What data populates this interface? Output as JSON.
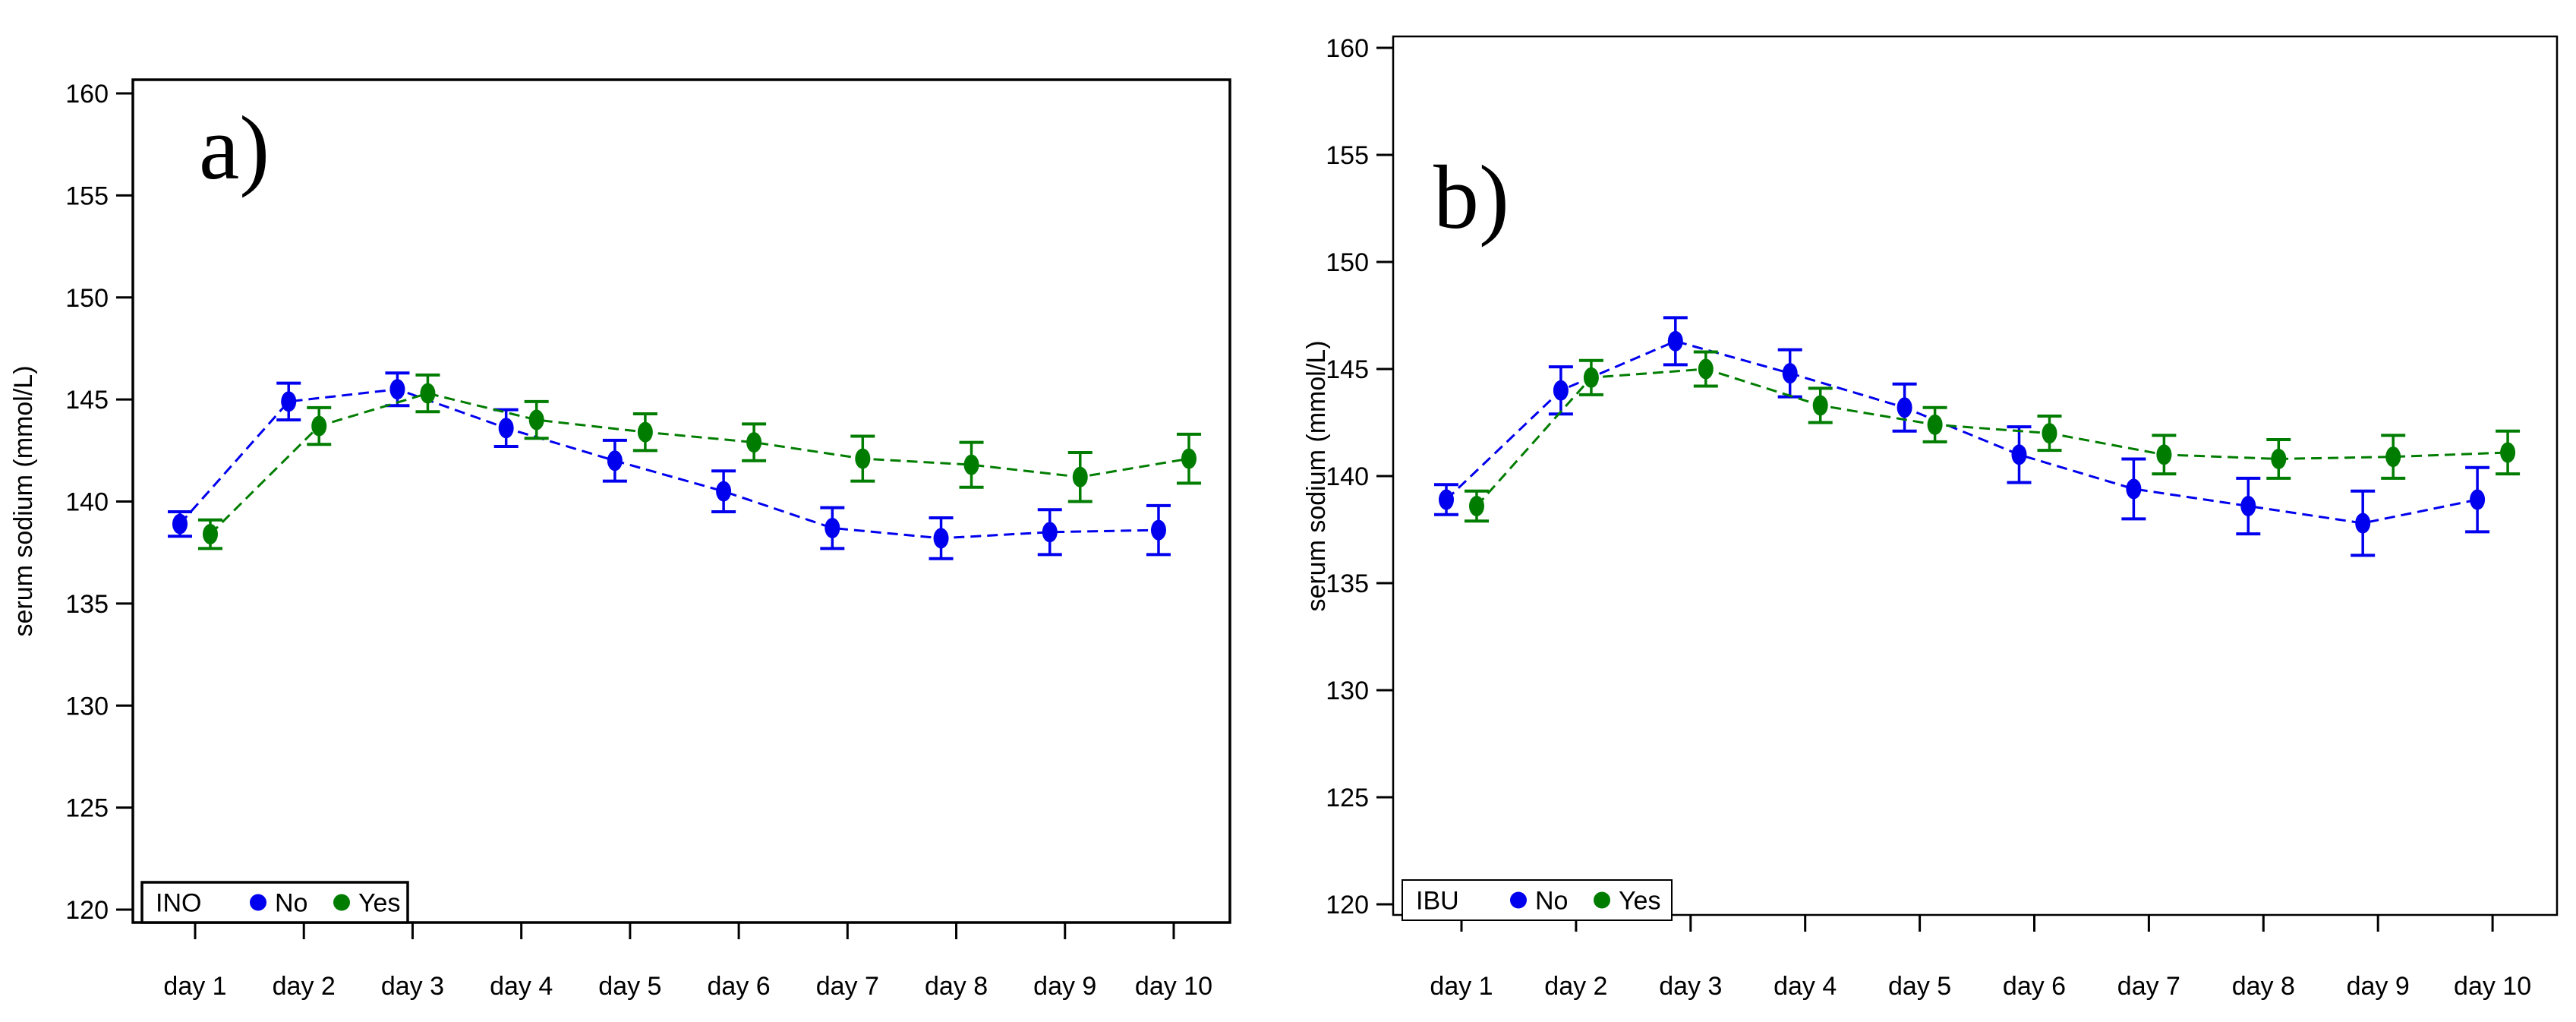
{
  "page": {
    "background": "#ffffff"
  },
  "colors": {
    "no_series": "#0000EE",
    "yes_series": "#007D00",
    "axis": "#000000",
    "plot_bg": "#ffffff"
  },
  "chart_data": [
    {
      "panel_label": "a)",
      "type": "line",
      "ylabel": "serum sodium (mmol/L)",
      "xlabel": "",
      "x_categories": [
        "day 1",
        "day 2",
        "day 3",
        "day 4",
        "day 5",
        "day 6",
        "day 7",
        "day 8",
        "day 9",
        "day 10"
      ],
      "y_ticks": [
        160,
        155,
        150,
        145,
        140,
        135,
        130,
        125,
        120
      ],
      "ylim": [
        119,
        161
      ],
      "grid": false,
      "legend": {
        "title": "INO",
        "entries": [
          "No",
          "Yes"
        ],
        "position": "bottom-left"
      },
      "series": [
        {
          "name": "No",
          "color": "#0000EE",
          "marker": "filled-circle",
          "line_style": "dashed",
          "values": [
            138.9,
            144.9,
            145.5,
            143.6,
            142.0,
            140.5,
            138.7,
            138.2,
            138.5,
            138.6
          ],
          "errors": [
            0.6,
            0.9,
            0.8,
            0.9,
            1.0,
            1.0,
            1.0,
            1.0,
            1.1,
            1.2
          ]
        },
        {
          "name": "Yes",
          "color": "#007D00",
          "marker": "filled-circle",
          "line_style": "dashed",
          "values": [
            138.4,
            143.7,
            145.3,
            144.0,
            143.4,
            142.9,
            142.1,
            141.8,
            141.2,
            142.1
          ],
          "errors": [
            0.7,
            0.9,
            0.9,
            0.9,
            0.9,
            0.9,
            1.1,
            1.1,
            1.2,
            1.2
          ]
        }
      ]
    },
    {
      "panel_label": "b)",
      "type": "line",
      "ylabel": "serum sodium (mmol/L)",
      "xlabel": "",
      "x_categories": [
        "day 1",
        "day 2",
        "day 3",
        "day 4",
        "day 5",
        "day 6",
        "day 7",
        "day 8",
        "day 9",
        "day 10"
      ],
      "y_ticks": [
        160,
        155,
        150,
        145,
        140,
        135,
        130,
        125,
        120
      ],
      "ylim": [
        119,
        161
      ],
      "grid": false,
      "legend": {
        "title": "IBU",
        "entries": [
          "No",
          "Yes"
        ],
        "position": "bottom-left"
      },
      "series": [
        {
          "name": "No",
          "color": "#0000EE",
          "marker": "filled-circle",
          "line_style": "dashed",
          "values": [
            138.9,
            144.0,
            146.3,
            144.8,
            143.2,
            141.0,
            139.4,
            138.6,
            137.8,
            138.9
          ],
          "errors": [
            0.7,
            1.1,
            1.1,
            1.1,
            1.1,
            1.3,
            1.4,
            1.3,
            1.5,
            1.5
          ]
        },
        {
          "name": "Yes",
          "color": "#007D00",
          "marker": "filled-circle",
          "line_style": "dashed",
          "values": [
            138.6,
            144.6,
            145.0,
            143.3,
            142.4,
            142.0,
            141.0,
            140.8,
            140.9,
            141.1
          ],
          "errors": [
            0.7,
            0.8,
            0.8,
            0.8,
            0.8,
            0.8,
            0.9,
            0.9,
            1.0,
            1.0
          ]
        }
      ]
    }
  ]
}
